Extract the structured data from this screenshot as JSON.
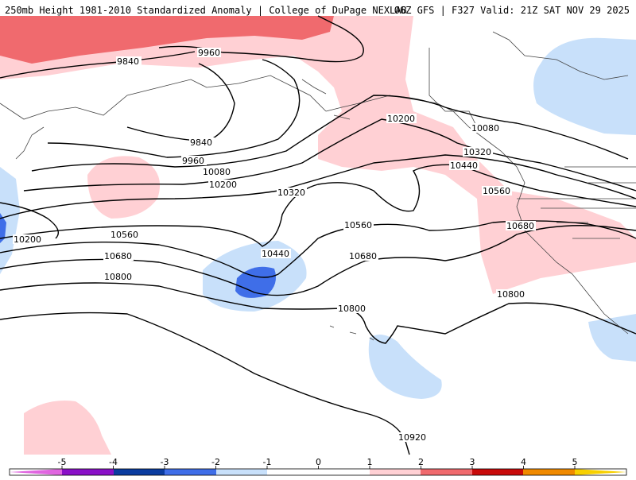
{
  "header": {
    "title_left": "250mb Height 1981-2010 Standardized Anomaly | College of DuPage NEXLAB",
    "title_right": "06Z GFS | F327 Valid: 21Z SAT NOV 29 2025"
  },
  "colors": {
    "neg5": "#e066e0",
    "neg4": "#8a10c8",
    "neg3": "#0a3ca0",
    "neg2": "#3f6ee8",
    "neg1": "#c8e0fa",
    "zero": "#ffffff",
    "pos1": "#ffd0d4",
    "pos2": "#f06a6e",
    "pos3": "#c80a0a",
    "pos4": "#f08a00",
    "pos5": "#f7d000",
    "contour": "#000000",
    "coast": "#444444"
  },
  "contour_labels": {
    "h9840a": "9840",
    "h9960a": "9960",
    "h9840b": "9840",
    "h9960b": "9960",
    "h10080a": "10080",
    "h10200a": "10200",
    "h10200b": "10200",
    "h10080b": "10080",
    "h10320a": "10320",
    "h10320b": "10320",
    "h10440a": "10440",
    "h10440b": "10440",
    "h10200c": "10200",
    "h10560a": "10560",
    "h10560b": "10560",
    "h10560c": "10560",
    "h10680a": "10680",
    "h10680b": "10680",
    "h10680c": "10680",
    "h10800a": "10800",
    "h10800b": "10800",
    "h10800c": "10800",
    "h10920": "10920"
  },
  "colorbar": {
    "ticks": [
      "-5",
      "-4",
      "-3",
      "-2",
      "-1",
      "0",
      "1",
      "2",
      "3",
      "4",
      "5"
    ]
  }
}
